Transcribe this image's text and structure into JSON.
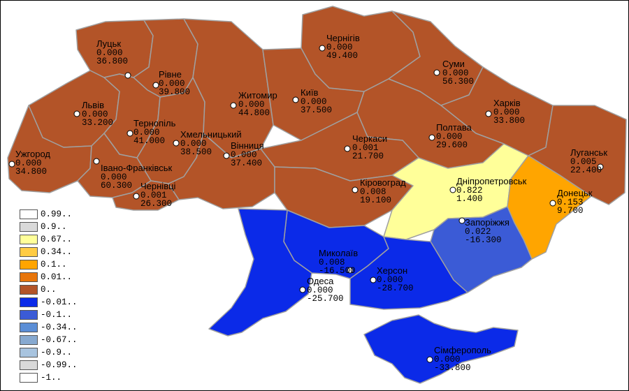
{
  "colors": {
    "brown": "#B35428",
    "blue": "#0B2AE8",
    "mid_blue": "#3B5BD6",
    "yellow": "#FFFF99",
    "orange": "#FFA500",
    "border": "#a0a0a0"
  },
  "regions": [
    {
      "id": "lutsk",
      "name": "Луцьк",
      "v1": "0.000",
      "v2": "36.800",
      "fill": "brown"
    },
    {
      "id": "rivne",
      "name": "Рівне",
      "v1": "0.000",
      "v2": "39.800",
      "fill": "brown"
    },
    {
      "id": "lviv",
      "name": "Львів",
      "v1": "0.000",
      "v2": "33.200",
      "fill": "brown"
    },
    {
      "id": "uzhhorod",
      "name": "Ужгород",
      "v1": "0.000",
      "v2": "34.800",
      "fill": "brown"
    },
    {
      "id": "ternopil",
      "name": "Тернопіль",
      "v1": "0.000",
      "v2": "41.000",
      "fill": "brown"
    },
    {
      "id": "khmelnytskyi",
      "name": "Хмельницький",
      "v1": "0.000",
      "v2": "38.500",
      "fill": "brown"
    },
    {
      "id": "ivano",
      "name": "Івано-Франківськ",
      "v1": "0.000",
      "v2": "60.300",
      "fill": "brown"
    },
    {
      "id": "chernivtsi",
      "name": "Чернівці",
      "v1": "0.001",
      "v2": "26.300",
      "fill": "brown"
    },
    {
      "id": "zhytomyr",
      "name": "Житомир",
      "v1": "0.000",
      "v2": "44.800",
      "fill": "brown"
    },
    {
      "id": "vinnytsia",
      "name": "Вінниця",
      "v1": "0.000",
      "v2": "37.400",
      "fill": "brown"
    },
    {
      "id": "kyiv",
      "name": "Київ",
      "v1": "0.000",
      "v2": "37.500",
      "fill": "brown"
    },
    {
      "id": "chernihiv",
      "name": "Чернігів",
      "v1": "0.000",
      "v2": "49.400",
      "fill": "brown"
    },
    {
      "id": "sumy",
      "name": "Суми",
      "v1": "0.000",
      "v2": "56.300",
      "fill": "brown"
    },
    {
      "id": "kharkiv",
      "name": "Харків",
      "v1": "0.000",
      "v2": "33.800",
      "fill": "brown"
    },
    {
      "id": "poltava",
      "name": "Полтава",
      "v1": "0.000",
      "v2": "29.600",
      "fill": "brown"
    },
    {
      "id": "cherkasy",
      "name": "Черкаси",
      "v1": "0.001",
      "v2": "21.700",
      "fill": "brown"
    },
    {
      "id": "kirovohrad",
      "name": "Кіровоград",
      "v1": "0.008",
      "v2": "19.100",
      "fill": "brown"
    },
    {
      "id": "luhansk",
      "name": "Луганськ",
      "v1": "0.005",
      "v2": "22.400",
      "fill": "brown"
    },
    {
      "id": "dnipro",
      "name": "Дніпропетровськ",
      "v1": "0.822",
      "v2": "1.400",
      "fill": "yellow"
    },
    {
      "id": "donetsk",
      "name": "Донецьк",
      "v1": "0.153",
      "v2": "9.700",
      "fill": "orange"
    },
    {
      "id": "zaporizhzhia",
      "name": "Запоріжжя",
      "v1": "0.022",
      "v2": "-16.300",
      "fill": "mid_blue"
    },
    {
      "id": "mykolaiv",
      "name": "Миколаїв",
      "v1": "0.008",
      "v2": "-16.500",
      "fill": "blue"
    },
    {
      "id": "odesa",
      "name": "Одеса",
      "v1": "0.000",
      "v2": "-25.700",
      "fill": "blue"
    },
    {
      "id": "kherson",
      "name": "Херсон",
      "v1": "0.000",
      "v2": "-28.700",
      "fill": "blue"
    },
    {
      "id": "simferopol",
      "name": "Сімферополь",
      "v1": "0.000",
      "v2": "-33.800",
      "fill": "blue"
    }
  ],
  "legend": [
    {
      "label": "0.99..",
      "color": "#FFFFFF"
    },
    {
      "label": "0.9..",
      "color": "#D9D9D9"
    },
    {
      "label": "0.67..",
      "color": "#FFFF99"
    },
    {
      "label": "0.34..",
      "color": "#FFCC44"
    },
    {
      "label": "0.1..",
      "color": "#FFA500"
    },
    {
      "label": "0.01..",
      "color": "#E8750A"
    },
    {
      "label": "0..",
      "color": "#B35428"
    },
    {
      "label": "-0.01..",
      "color": "#0B2AE8"
    },
    {
      "label": "-0.1..",
      "color": "#3B5BD6"
    },
    {
      "label": "-0.34..",
      "color": "#5B8ED6"
    },
    {
      "label": "-0.67..",
      "color": "#87A9D0"
    },
    {
      "label": "-0.9..",
      "color": "#A8C4DF"
    },
    {
      "label": "-0.99..",
      "color": "#D9D9D9"
    },
    {
      "label": "-1..",
      "color": "#FFFFFF"
    }
  ]
}
